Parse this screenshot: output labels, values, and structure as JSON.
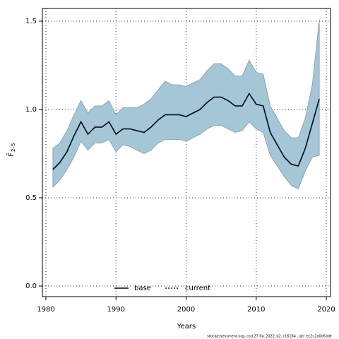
{
  "chart_data": {
    "type": "line",
    "xlabel": "Years",
    "ylabel": {
      "main": "F̄",
      "sub": "2–5"
    },
    "footer": "stockassessment.org, cod.27.6a_2022_b2, r16164 , git: ec2c2a0c6dde",
    "x": [
      1981,
      1982,
      1983,
      1984,
      1985,
      1986,
      1987,
      1988,
      1989,
      1990,
      1991,
      1992,
      1993,
      1994,
      1995,
      1996,
      1997,
      1998,
      1999,
      2000,
      2001,
      2002,
      2003,
      2004,
      2005,
      2006,
      2007,
      2008,
      2009,
      2010,
      2011,
      2012,
      2013,
      2014,
      2015,
      2016,
      2017,
      2018,
      2019
    ],
    "band": {
      "color": "#a5c6d7",
      "edge": "#7f9aa8",
      "upper": [
        0.78,
        0.81,
        0.88,
        0.97,
        1.05,
        0.98,
        1.02,
        1.02,
        1.05,
        0.97,
        1.01,
        1.01,
        1.01,
        1.03,
        1.06,
        1.11,
        1.16,
        1.14,
        1.14,
        1.13,
        1.15,
        1.17,
        1.22,
        1.26,
        1.26,
        1.23,
        1.19,
        1.19,
        1.28,
        1.21,
        1.2,
        1.02,
        0.95,
        0.88,
        0.84,
        0.84,
        0.95,
        1.14,
        1.51
      ],
      "lower": [
        0.56,
        0.6,
        0.66,
        0.73,
        0.82,
        0.77,
        0.81,
        0.81,
        0.83,
        0.76,
        0.8,
        0.79,
        0.77,
        0.75,
        0.77,
        0.81,
        0.83,
        0.83,
        0.83,
        0.82,
        0.84,
        0.86,
        0.89,
        0.91,
        0.91,
        0.89,
        0.87,
        0.88,
        0.93,
        0.89,
        0.87,
        0.74,
        0.68,
        0.62,
        0.57,
        0.55,
        0.65,
        0.73,
        0.74
      ]
    },
    "series": [
      {
        "name": "base",
        "color": "#000000",
        "dash": "none",
        "values": [
          0.66,
          0.7,
          0.76,
          0.85,
          0.93,
          0.86,
          0.9,
          0.9,
          0.93,
          0.86,
          0.89,
          0.89,
          0.88,
          0.87,
          0.9,
          0.94,
          0.97,
          0.97,
          0.97,
          0.96,
          0.98,
          1.0,
          1.04,
          1.07,
          1.07,
          1.05,
          1.02,
          1.02,
          1.09,
          1.03,
          1.02,
          0.87,
          0.8,
          0.73,
          0.69,
          0.68,
          0.78,
          0.92,
          1.06
        ]
      },
      {
        "name": "current",
        "color": "#00263a",
        "dash": "2 2",
        "values": [
          0.66,
          0.7,
          0.76,
          0.85,
          0.93,
          0.86,
          0.9,
          0.9,
          0.93,
          0.86,
          0.89,
          0.89,
          0.88,
          0.87,
          0.9,
          0.94,
          0.97,
          0.97,
          0.97,
          0.96,
          0.98,
          1.0,
          1.04,
          1.07,
          1.07,
          1.05,
          1.02,
          1.02,
          1.09,
          1.03,
          1.02,
          0.87,
          0.8,
          0.73,
          0.69,
          0.68,
          0.78,
          0.92,
          1.06
        ]
      }
    ],
    "xlim": [
      1979.5,
      2020.6
    ],
    "ylim": [
      -0.06,
      1.572
    ],
    "xticks": [
      1980,
      1990,
      2000,
      2010,
      2020
    ],
    "yticks": [
      {
        "value": 0,
        "label": "0.0"
      },
      {
        "value": 0.5,
        "label": "0.5"
      },
      {
        "value": 1,
        "label": "1.0"
      },
      {
        "value": 1.5,
        "label": "1.5"
      }
    ],
    "grid": true
  }
}
